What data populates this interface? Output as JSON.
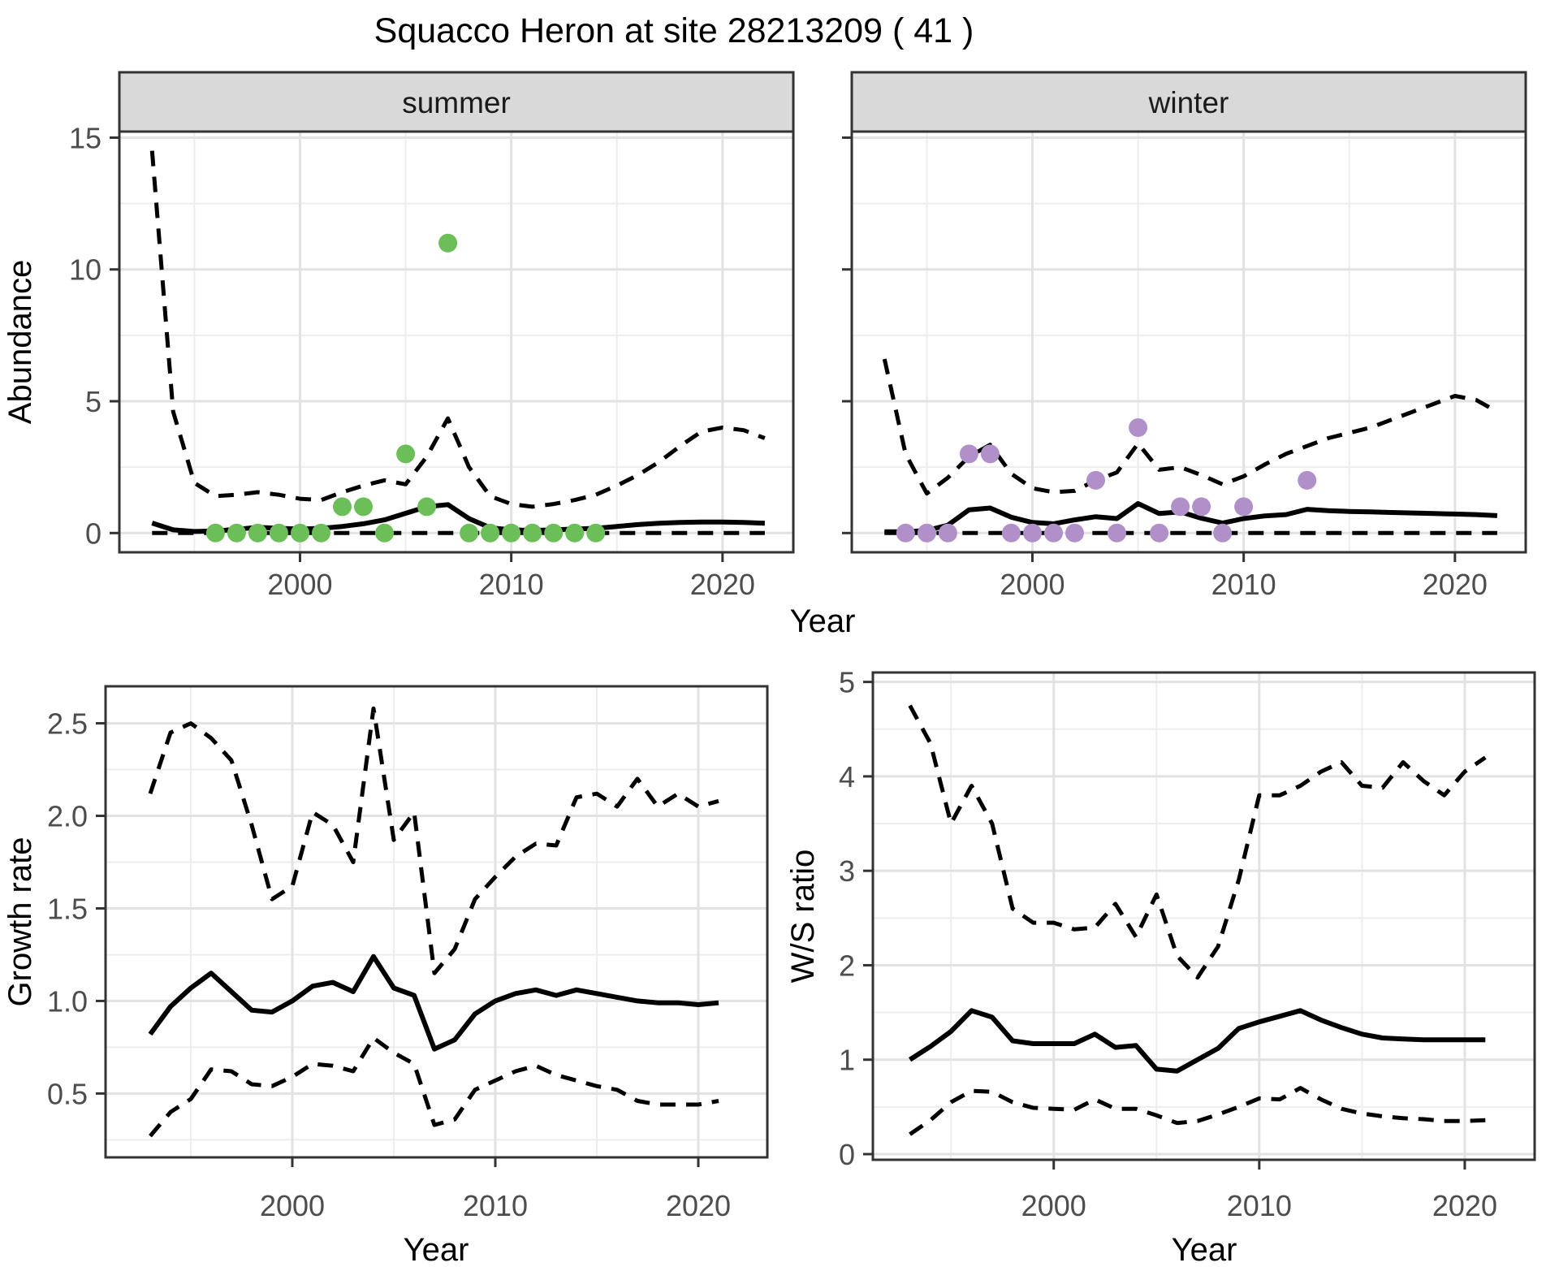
{
  "title": "Squacco Heron at site 28213209 ( 41 )",
  "axes": {
    "year": "Year",
    "abundance": "Abundance",
    "growth": "Growth rate",
    "ws": "W/S ratio"
  },
  "facets": {
    "summer": "summer",
    "winter": "winter"
  },
  "style_colors": {
    "summer_points": "#6CBE58",
    "winter_points": "#B18FC9",
    "line": "#000000",
    "panel_border": "#333333",
    "strip_bg": "#D9D9D9",
    "grid_major": "#E2E2E2",
    "grid_minor": "#EDEDED",
    "tick_text": "#4D4D4D"
  },
  "chart_data": [
    {
      "id": "abundance-summer",
      "type": "line",
      "facet": "summer",
      "xlabel": "Year",
      "ylabel": "Abundance",
      "xlim": [
        1991.45,
        2023.35
      ],
      "ylim": [
        -0.73,
        15.23
      ],
      "xticks": [
        2000,
        2010,
        2020
      ],
      "xminor": [
        1995,
        2005,
        2015
      ],
      "yticks": [
        0,
        5,
        10,
        15
      ],
      "yminor": [
        2.5,
        7.5,
        12.5
      ],
      "show_yticklabels": true,
      "x": [
        1993,
        1994,
        1995,
        1996,
        1997,
        1998,
        1999,
        2000,
        2001,
        2002,
        2003,
        2004,
        2005,
        2006,
        2007,
        2008,
        2009,
        2010,
        2011,
        2012,
        2013,
        2014,
        2015,
        2016,
        2017,
        2018,
        2019,
        2020,
        2021,
        2022
      ],
      "series": [
        {
          "name": "upper_ci",
          "style": "dashed",
          "values": [
            14.5,
            4.6,
            1.9,
            1.4,
            1.45,
            1.55,
            1.45,
            1.3,
            1.25,
            1.55,
            1.8,
            2.0,
            1.85,
            2.9,
            4.35,
            2.5,
            1.4,
            1.1,
            1.0,
            1.1,
            1.25,
            1.45,
            1.8,
            2.2,
            2.7,
            3.3,
            3.85,
            4.0,
            3.9,
            3.6
          ]
        },
        {
          "name": "median",
          "style": "solid",
          "values": [
            0.38,
            0.12,
            0.06,
            0.08,
            0.14,
            0.22,
            0.18,
            0.15,
            0.18,
            0.25,
            0.35,
            0.5,
            0.75,
            1.0,
            1.08,
            0.55,
            0.2,
            0.12,
            0.1,
            0.12,
            0.15,
            0.18,
            0.25,
            0.32,
            0.37,
            0.4,
            0.42,
            0.42,
            0.4,
            0.37
          ]
        },
        {
          "name": "lower_ci",
          "style": "dashed",
          "values": [
            0,
            0,
            0,
            0,
            0,
            0,
            0,
            0,
            0,
            0,
            0,
            0,
            0,
            0,
            0,
            0,
            0,
            0,
            0,
            0,
            0,
            0,
            0,
            0,
            0,
            0,
            0,
            0,
            0,
            0
          ]
        }
      ],
      "observations": [
        [
          1996,
          0
        ],
        [
          1997,
          0
        ],
        [
          1998,
          0
        ],
        [
          1999,
          0
        ],
        [
          2000,
          0
        ],
        [
          2001,
          0
        ],
        [
          2002,
          1
        ],
        [
          2003,
          1
        ],
        [
          2004,
          0
        ],
        [
          2005,
          3
        ],
        [
          2006,
          1
        ],
        [
          2007,
          11
        ],
        [
          2008,
          0
        ],
        [
          2009,
          0
        ],
        [
          2010,
          0
        ],
        [
          2011,
          0
        ],
        [
          2012,
          0
        ],
        [
          2013,
          0
        ],
        [
          2014,
          0
        ]
      ],
      "point_color": "#6CBE58"
    },
    {
      "id": "abundance-winter",
      "type": "line",
      "facet": "winter",
      "xlabel": "Year",
      "ylabel": "Abundance",
      "xlim": [
        1991.45,
        2023.35
      ],
      "ylim": [
        -0.73,
        15.23
      ],
      "xticks": [
        2000,
        2010,
        2020
      ],
      "xminor": [
        1995,
        2005,
        2015
      ],
      "yticks": [
        0,
        5,
        10,
        15
      ],
      "yminor": [
        2.5,
        7.5,
        12.5
      ],
      "show_yticklabels": false,
      "x": [
        1993,
        1994,
        1995,
        1996,
        1997,
        1998,
        1999,
        2000,
        2001,
        2002,
        2003,
        2004,
        2005,
        2006,
        2007,
        2008,
        2009,
        2010,
        2011,
        2012,
        2013,
        2014,
        2015,
        2016,
        2017,
        2018,
        2019,
        2020,
        2021,
        2022
      ],
      "series": [
        {
          "name": "upper_ci",
          "style": "dashed",
          "values": [
            6.6,
            3.0,
            1.5,
            2.1,
            2.9,
            3.35,
            2.25,
            1.7,
            1.55,
            1.6,
            2.0,
            2.3,
            3.4,
            2.4,
            2.5,
            2.2,
            1.85,
            2.15,
            2.6,
            3.0,
            3.3,
            3.6,
            3.8,
            4.0,
            4.3,
            4.6,
            4.9,
            5.2,
            5.05,
            4.6
          ]
        },
        {
          "name": "median",
          "style": "solid",
          "values": [
            0.05,
            0.05,
            0.1,
            0.3,
            0.88,
            0.95,
            0.6,
            0.4,
            0.35,
            0.5,
            0.62,
            0.55,
            1.12,
            0.74,
            0.8,
            0.56,
            0.38,
            0.55,
            0.65,
            0.7,
            0.9,
            0.85,
            0.82,
            0.8,
            0.78,
            0.76,
            0.74,
            0.72,
            0.7,
            0.66
          ]
        },
        {
          "name": "lower_ci",
          "style": "dashed",
          "values": [
            0,
            0,
            0,
            0,
            0,
            0,
            0,
            0,
            0,
            0,
            0,
            0,
            0,
            0,
            0,
            0,
            0,
            0,
            0,
            0,
            0,
            0,
            0,
            0,
            0,
            0,
            0,
            0,
            0,
            0
          ]
        }
      ],
      "observations": [
        [
          1994,
          0
        ],
        [
          1995,
          0
        ],
        [
          1996,
          0
        ],
        [
          1997,
          3
        ],
        [
          1998,
          3
        ],
        [
          1999,
          0
        ],
        [
          2000,
          0
        ],
        [
          2001,
          0
        ],
        [
          2002,
          0
        ],
        [
          2003,
          2
        ],
        [
          2004,
          0
        ],
        [
          2005,
          4
        ],
        [
          2006,
          0
        ],
        [
          2007,
          1
        ],
        [
          2008,
          1
        ],
        [
          2009,
          0
        ],
        [
          2010,
          1
        ],
        [
          2013,
          2
        ]
      ],
      "point_color": "#B18FC9"
    },
    {
      "id": "growth-rate",
      "type": "line",
      "facet": null,
      "xlabel": "Year",
      "ylabel": "Growth rate",
      "xlim": [
        1990.8,
        2023.4
      ],
      "ylim": [
        0.155,
        2.7
      ],
      "xticks": [
        2000,
        2010,
        2020
      ],
      "xminor": [
        1995,
        2005,
        2015
      ],
      "yticks": [
        0.5,
        1.0,
        1.5,
        2.0,
        2.5
      ],
      "ytick_labels": [
        "0.5",
        "1.0",
        "1.5",
        "2.0",
        "2.5"
      ],
      "yminor": [
        0.25,
        0.75,
        1.25,
        1.75,
        2.25
      ],
      "show_yticklabels": true,
      "x": [
        1993,
        1994,
        1995,
        1996,
        1997,
        1998,
        1999,
        2000,
        2001,
        2002,
        2003,
        2004,
        2005,
        2006,
        2007,
        2008,
        2009,
        2010,
        2011,
        2012,
        2013,
        2014,
        2015,
        2016,
        2017,
        2018,
        2019,
        2020,
        2021
      ],
      "series": [
        {
          "name": "upper_ci",
          "style": "dashed",
          "values": [
            2.12,
            2.45,
            2.5,
            2.42,
            2.3,
            1.95,
            1.55,
            1.62,
            2.02,
            1.95,
            1.75,
            2.58,
            1.87,
            2.02,
            1.15,
            1.28,
            1.55,
            1.67,
            1.78,
            1.85,
            1.84,
            2.1,
            2.12,
            2.05,
            2.2,
            2.05,
            2.12,
            2.05,
            2.08
          ]
        },
        {
          "name": "median",
          "style": "solid",
          "values": [
            0.82,
            0.97,
            1.07,
            1.15,
            1.05,
            0.95,
            0.94,
            1.0,
            1.08,
            1.1,
            1.05,
            1.24,
            1.07,
            1.03,
            0.74,
            0.79,
            0.93,
            1.0,
            1.04,
            1.06,
            1.03,
            1.06,
            1.04,
            1.02,
            1.0,
            0.99,
            0.99,
            0.98,
            0.99
          ]
        },
        {
          "name": "lower_ci",
          "style": "dashed",
          "values": [
            0.27,
            0.4,
            0.47,
            0.63,
            0.62,
            0.55,
            0.54,
            0.59,
            0.66,
            0.65,
            0.62,
            0.8,
            0.72,
            0.66,
            0.33,
            0.36,
            0.52,
            0.57,
            0.62,
            0.65,
            0.6,
            0.57,
            0.54,
            0.52,
            0.46,
            0.44,
            0.44,
            0.44,
            0.46
          ]
        }
      ],
      "observations": [],
      "point_color": null
    },
    {
      "id": "ws-ratio",
      "type": "line",
      "facet": null,
      "xlabel": "Year",
      "ylabel": "W/S ratio",
      "xlim": [
        1991.2,
        2023.4
      ],
      "ylim": [
        -0.06,
        5.1
      ],
      "xticks": [
        2000,
        2010,
        2020
      ],
      "xminor": [
        1995,
        2005,
        2015
      ],
      "yticks": [
        0,
        1,
        2,
        3,
        4,
        5
      ],
      "yminor": [
        0.5,
        1.5,
        2.5,
        3.5,
        4.5
      ],
      "show_yticklabels": true,
      "x": [
        1993,
        1994,
        1995,
        1996,
        1997,
        1998,
        1999,
        2000,
        2001,
        2002,
        2003,
        2004,
        2005,
        2006,
        2007,
        2008,
        2009,
        2010,
        2011,
        2012,
        2013,
        2014,
        2015,
        2016,
        2017,
        2018,
        2019,
        2020,
        2021
      ],
      "series": [
        {
          "name": "upper_ci",
          "style": "dashed",
          "values": [
            4.75,
            4.35,
            3.5,
            3.9,
            3.5,
            2.6,
            2.45,
            2.45,
            2.38,
            2.4,
            2.65,
            2.3,
            2.75,
            2.1,
            1.87,
            2.2,
            2.9,
            3.8,
            3.8,
            3.9,
            4.05,
            4.15,
            3.9,
            3.88,
            4.15,
            3.95,
            3.8,
            4.05,
            4.2
          ]
        },
        {
          "name": "median",
          "style": "solid",
          "values": [
            1.0,
            1.14,
            1.3,
            1.52,
            1.45,
            1.2,
            1.17,
            1.17,
            1.17,
            1.27,
            1.13,
            1.15,
            0.9,
            0.88,
            1.0,
            1.12,
            1.33,
            1.4,
            1.46,
            1.52,
            1.42,
            1.34,
            1.27,
            1.23,
            1.22,
            1.21,
            1.21,
            1.21,
            1.21
          ]
        },
        {
          "name": "lower_ci",
          "style": "dashed",
          "values": [
            0.21,
            0.36,
            0.55,
            0.67,
            0.66,
            0.55,
            0.49,
            0.48,
            0.47,
            0.58,
            0.48,
            0.48,
            0.41,
            0.33,
            0.35,
            0.42,
            0.5,
            0.59,
            0.58,
            0.7,
            0.58,
            0.48,
            0.43,
            0.4,
            0.38,
            0.37,
            0.35,
            0.35,
            0.36
          ]
        }
      ],
      "observations": [],
      "point_color": null
    }
  ]
}
